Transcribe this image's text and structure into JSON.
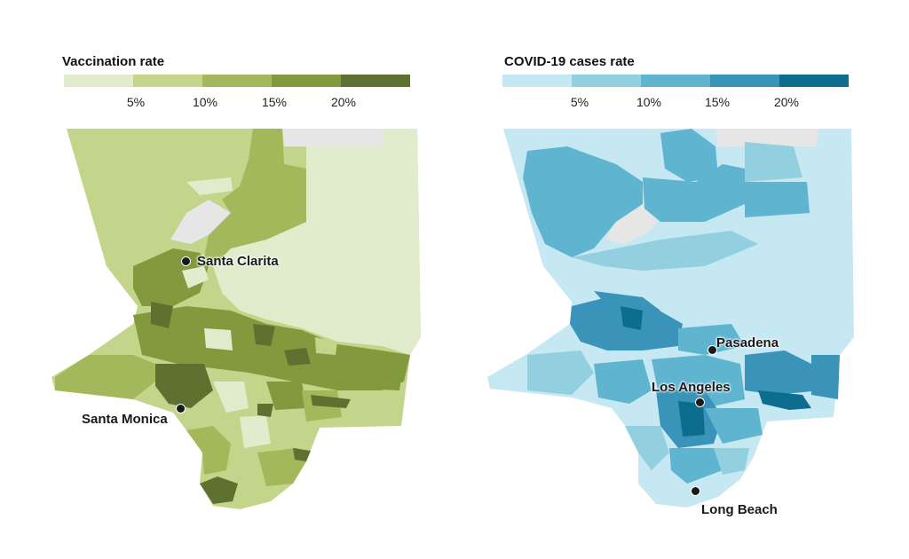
{
  "maps": [
    {
      "legend_title": "Vaccination rate",
      "ticks": [
        "5%",
        "10%",
        "15%",
        "20%"
      ],
      "colors": [
        "#e0eccb",
        "#c2d58a",
        "#a3b85a",
        "#82993d",
        "#5f7130"
      ],
      "no_data_color": "#e6e6e6",
      "cities": [
        "Santa Clarita",
        "Santa Monica"
      ]
    },
    {
      "legend_title": "COVID-19 cases rate",
      "ticks": [
        "5%",
        "10%",
        "15%",
        "20%"
      ],
      "colors": [
        "#c6e8f2",
        "#92d0e0",
        "#5fb5d0",
        "#3a93b8",
        "#0d6d8e"
      ],
      "no_data_color": "#e6e6e6",
      "cities": [
        "Pasadena",
        "Los Angeles",
        "Long Beach"
      ]
    }
  ]
}
